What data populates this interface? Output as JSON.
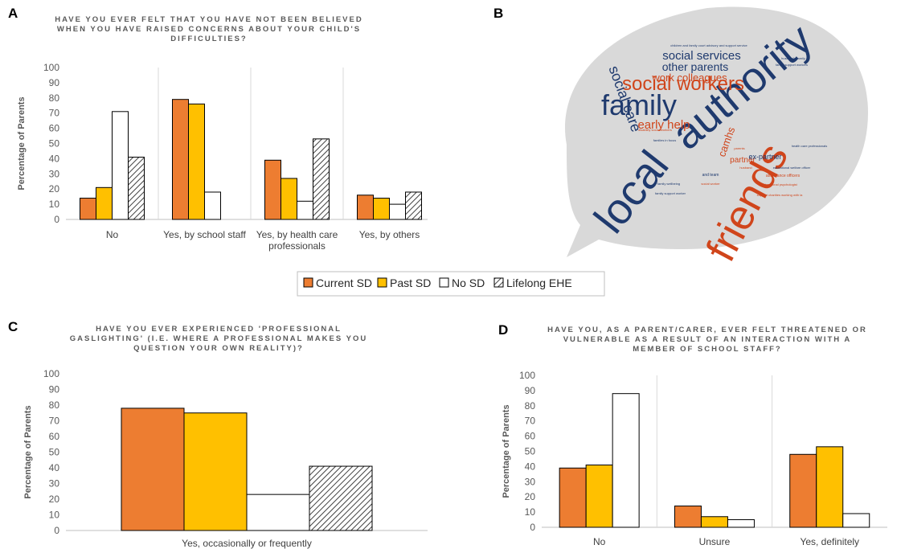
{
  "colors": {
    "current_sd": "#ED7D31",
    "past_sd": "#FFC000",
    "no_sd": "#FFFFFF",
    "lifelong_ehe": "hatched",
    "axis": "#BFBFBF",
    "bubble": "#D9D9D9",
    "word_blue": "#1F3A6E",
    "word_orange": "#D0451B"
  },
  "legend": {
    "items": [
      "Current SD",
      "Past SD",
      "No SD",
      "Lifelong EHE"
    ]
  },
  "chart_data": [
    {
      "panel": "A",
      "type": "bar",
      "title_lines": [
        "HAVE YOU EVER FELT THAT YOU HAVE NOT BEEN BELIEVED",
        "WHEN YOU HAVE RAISED CONCERNS ABOUT YOUR CHILD'S",
        "DIFFICULTIES?"
      ],
      "ylabel": "Percentage of Parents",
      "ylim": [
        0,
        100
      ],
      "yticks": [
        0,
        10,
        20,
        30,
        40,
        50,
        60,
        70,
        80,
        90,
        100
      ],
      "grid": false,
      "categories": [
        [
          "No"
        ],
        [
          "Yes, by school staff"
        ],
        [
          "Yes, by health care",
          "professionals"
        ],
        [
          "Yes, by others"
        ]
      ],
      "series": [
        {
          "name": "Current SD",
          "values": [
            14,
            79,
            39,
            16
          ]
        },
        {
          "name": "Past SD",
          "values": [
            21,
            76,
            27,
            14
          ]
        },
        {
          "name": "No SD",
          "values": [
            71,
            18,
            12,
            10
          ]
        },
        {
          "name": "Lifelong EHE",
          "values": [
            41,
            0,
            53,
            18
          ]
        }
      ]
    },
    {
      "panel": "C",
      "type": "bar",
      "title_lines": [
        "HAVE YOU EVER EXPERIENCED 'PROFESSIONAL",
        "GASLIGHTING' (I.E. WHERE A PROFESSIONAL MAKES YOU",
        "QUESTION YOUR OWN REALITY)?"
      ],
      "ylabel": "Percentage of Parents",
      "ylim": [
        0,
        100
      ],
      "yticks": [
        0,
        10,
        20,
        30,
        40,
        50,
        60,
        70,
        80,
        90,
        100
      ],
      "grid": false,
      "categories": [
        [
          "Yes, occasionally or frequently"
        ]
      ],
      "series": [
        {
          "name": "Current SD",
          "values": [
            78
          ]
        },
        {
          "name": "Past SD",
          "values": [
            75
          ]
        },
        {
          "name": "No SD",
          "values": [
            23
          ]
        },
        {
          "name": "Lifelong EHE",
          "values": [
            41
          ]
        }
      ]
    },
    {
      "panel": "D",
      "type": "bar",
      "title_lines": [
        "HAVE YOU, AS A PARENT/CARER, EVER FELT THREATENED OR",
        "VULNERABLE AS A RESULT OF AN INTERACTION WITH A",
        "MEMBER OF SCHOOL STAFF?"
      ],
      "ylabel": "Percentage of Parents",
      "ylim": [
        0,
        100
      ],
      "yticks": [
        0,
        10,
        20,
        30,
        40,
        50,
        60,
        70,
        80,
        90,
        100
      ],
      "grid": false,
      "categories": [
        [
          "No"
        ],
        [
          "Unsure"
        ],
        [
          "Yes, definitely"
        ]
      ],
      "series": [
        {
          "name": "Current SD",
          "values": [
            39,
            14,
            48
          ]
        },
        {
          "name": "Past SD",
          "values": [
            41,
            7,
            53
          ]
        },
        {
          "name": "No SD",
          "values": [
            88,
            5,
            9
          ]
        }
      ]
    }
  ],
  "wordcloud": {
    "panel": "B",
    "words": [
      {
        "text": "local",
        "color": "blue",
        "weight": 10
      },
      {
        "text": "authority",
        "color": "blue",
        "weight": 10
      },
      {
        "text": "friends",
        "color": "orange",
        "weight": 9
      },
      {
        "text": "family",
        "color": "blue",
        "weight": 8
      },
      {
        "text": "social workers",
        "color": "orange",
        "weight": 7
      },
      {
        "text": "social care",
        "color": "blue",
        "weight": 5
      },
      {
        "text": "social services",
        "color": "blue",
        "weight": 5
      },
      {
        "text": "other parents",
        "color": "blue",
        "weight": 4
      },
      {
        "text": "work colleagues",
        "color": "orange",
        "weight": 4
      },
      {
        "text": "early help",
        "color": "orange",
        "weight": 4
      },
      {
        "text": "camhs",
        "color": "orange",
        "weight": 3
      },
      {
        "text": "partner",
        "color": "orange",
        "weight": 2
      },
      {
        "text": "ex-partner",
        "color": "blue",
        "weight": 2
      },
      {
        "text": "children and family court advisory and support service",
        "color": "blue",
        "weight": 1
      },
      {
        "text": "husband's family",
        "color": "blue",
        "weight": 1
      },
      {
        "text": "family support workers",
        "color": "blue",
        "weight": 1
      },
      {
        "text": "disability social workers",
        "color": "orange",
        "weight": 1
      },
      {
        "text": "families in focus",
        "color": "blue",
        "weight": 1
      },
      {
        "text": "health care professionals",
        "color": "blue",
        "weight": 1
      },
      {
        "text": "educational welfare officer",
        "color": "blue",
        "weight": 1
      },
      {
        "text": "attendance officers",
        "color": "orange",
        "weight": 1
      },
      {
        "text": "educational psychologist",
        "color": "orange",
        "weight": 1
      },
      {
        "text": "family support worker",
        "color": "blue",
        "weight": 1
      },
      {
        "text": "support charities working with la",
        "color": "orange",
        "weight": 1
      },
      {
        "text": "family wellbeing",
        "color": "blue",
        "weight": 1
      },
      {
        "text": "social worker",
        "color": "orange",
        "weight": 1
      },
      {
        "text": "parents",
        "color": "orange",
        "weight": 1
      },
      {
        "text": "husband",
        "color": "orange",
        "weight": 1
      },
      {
        "text": "and team",
        "color": "blue",
        "weight": 1
      }
    ]
  }
}
